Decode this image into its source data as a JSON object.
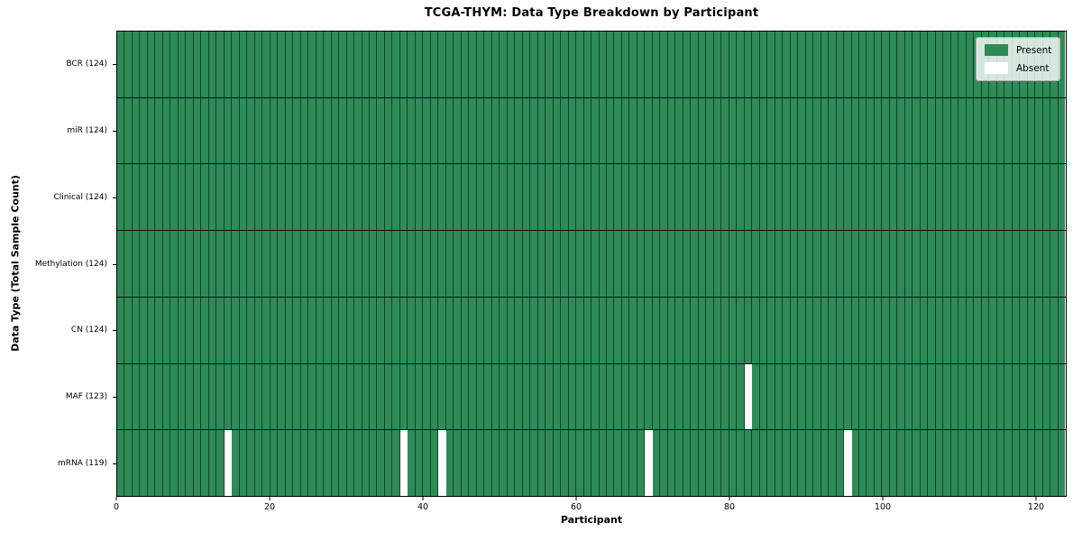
{
  "chart_data": {
    "type": "heatmap",
    "title": "TCGA-THYM: Data Type Breakdown by Participant",
    "xlabel": "Participant",
    "ylabel": "Data Type (Total Sample Count)",
    "n_participants": 124,
    "xlim": [
      0,
      124
    ],
    "x_ticks": [
      0,
      20,
      40,
      60,
      80,
      100,
      120
    ],
    "grid": "cell-edges",
    "legend_position": "upper right",
    "colors": {
      "present": "#2E8B57",
      "absent": "#FFFFFF",
      "cell_edge": "rgba(0,0,0,0.52)",
      "row_boundary": "#121212",
      "frame": "#000000"
    },
    "rows": [
      {
        "data_type": "BCR",
        "label": "BCR (124)",
        "total_samples": 124,
        "absent_participants": []
      },
      {
        "data_type": "miR",
        "label": "miR (124)",
        "total_samples": 124,
        "absent_participants": []
      },
      {
        "data_type": "Clinical",
        "label": "Clinical (124)",
        "total_samples": 124,
        "absent_participants": []
      },
      {
        "data_type": "Methylation",
        "label": "Methylation (124)",
        "total_samples": 124,
        "absent_participants": []
      },
      {
        "data_type": "CN",
        "label": "CN (124)",
        "total_samples": 124,
        "absent_participants": []
      },
      {
        "data_type": "MAF",
        "label": "MAF (123)",
        "total_samples": 123,
        "absent_participants": [
          82
        ]
      },
      {
        "data_type": "mRNA",
        "label": "mRNA (119)",
        "total_samples": 119,
        "absent_participants": [
          14,
          37,
          42,
          69,
          95
        ]
      }
    ],
    "legend": [
      {
        "label": "Present",
        "color": "#2E8B57"
      },
      {
        "label": "Absent",
        "color": "#FFFFFF"
      }
    ]
  }
}
